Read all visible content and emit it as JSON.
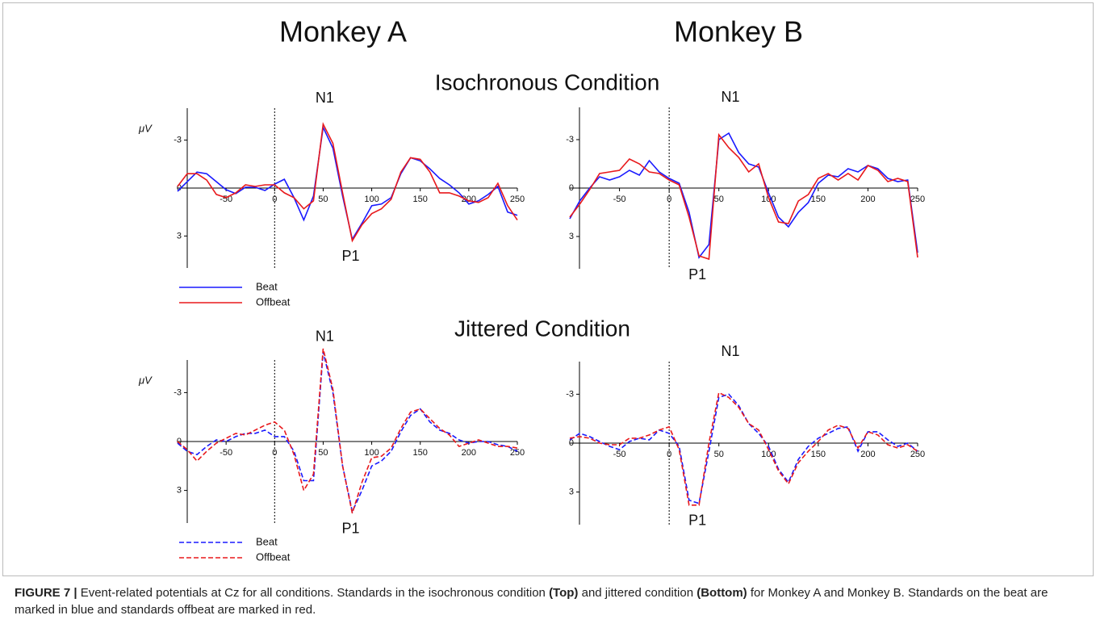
{
  "header": {
    "left": "Monkey A",
    "right": "Monkey B"
  },
  "conditions": [
    "Isochronous Condition",
    "Jittered Condition"
  ],
  "chart_data": [
    {
      "type": "line",
      "y_label": "μV",
      "annotations": [
        "N1",
        "P1"
      ],
      "line_style": "solid",
      "invert_y": true,
      "x": [
        -100,
        -90,
        -80,
        -70,
        -60,
        -50,
        -40,
        -30,
        -20,
        -10,
        0,
        10,
        20,
        30,
        40,
        50,
        60,
        70,
        80,
        90,
        100,
        110,
        120,
        130,
        140,
        150,
        160,
        170,
        180,
        190,
        200,
        210,
        220,
        230,
        240,
        250
      ],
      "xlim": [
        -100,
        250
      ],
      "xticks": [
        -50,
        0,
        50,
        100,
        150,
        200,
        250
      ],
      "ylim": [
        -5,
        5
      ],
      "yticks": [
        -3,
        0,
        3
      ],
      "series": [
        {
          "name": "Beat",
          "color": "#1a1aff",
          "values": [
            0.2,
            -0.4,
            -1.0,
            -0.9,
            -0.4,
            0.1,
            0.35,
            -0.05,
            -0.05,
            0.15,
            -0.25,
            -0.55,
            0.6,
            2.0,
            0.5,
            -3.8,
            -2.5,
            0.5,
            3.2,
            2.2,
            1.1,
            1.0,
            0.6,
            -0.9,
            -1.9,
            -1.7,
            -1.2,
            -0.6,
            -0.2,
            0.3,
            1.0,
            0.8,
            0.4,
            -0.1,
            1.5,
            1.7
          ]
        },
        {
          "name": "Offbeat",
          "color": "#e8191c",
          "values": [
            -0.1,
            -0.9,
            -0.9,
            -0.5,
            0.4,
            0.6,
            0.3,
            -0.2,
            -0.1,
            -0.2,
            -0.2,
            0.3,
            0.6,
            1.3,
            0.8,
            -4.0,
            -2.8,
            0.3,
            3.3,
            2.3,
            1.6,
            1.3,
            0.7,
            -1.0,
            -1.9,
            -1.8,
            -1.0,
            0.3,
            0.3,
            0.5,
            0.8,
            0.9,
            0.6,
            -0.3,
            1.1,
            2.0
          ]
        }
      ]
    },
    {
      "type": "line",
      "annotations": [
        "N1",
        "P1"
      ],
      "line_style": "solid",
      "invert_y": true,
      "x": [
        -100,
        -90,
        -80,
        -70,
        -60,
        -50,
        -40,
        -30,
        -20,
        -10,
        0,
        10,
        20,
        30,
        40,
        50,
        60,
        70,
        80,
        90,
        100,
        110,
        120,
        130,
        140,
        150,
        160,
        170,
        180,
        190,
        200,
        210,
        220,
        230,
        240,
        250
      ],
      "xlim": [
        -100,
        250
      ],
      "xticks": [
        -50,
        0,
        50,
        100,
        150,
        200,
        250
      ],
      "ylim": [
        -5,
        5
      ],
      "yticks": [
        -3,
        0,
        3
      ],
      "series": [
        {
          "color": "#1a1aff",
          "values": [
            1.9,
            0.8,
            0,
            -0.7,
            -0.5,
            -0.7,
            -1.1,
            -0.8,
            -1.7,
            -1.0,
            -0.6,
            -0.3,
            1.5,
            4.3,
            3.5,
            -3.0,
            -3.4,
            -2.2,
            -1.5,
            -1.3,
            0.3,
            1.8,
            2.4,
            1.5,
            0.9,
            -0.3,
            -0.8,
            -0.7,
            -1.2,
            -1.0,
            -1.4,
            -1.2,
            -0.6,
            -0.4,
            -0.5,
            4.0
          ]
        },
        {
          "color": "#e8191c",
          "values": [
            1.8,
            1.0,
            0.1,
            -0.9,
            -1.0,
            -1.1,
            -1.8,
            -1.5,
            -1.0,
            -0.9,
            -0.5,
            -0.2,
            1.8,
            4.2,
            4.4,
            -3.3,
            -2.5,
            -1.9,
            -1.0,
            -1.5,
            0.6,
            2.1,
            2.2,
            0.8,
            0.4,
            -0.6,
            -0.9,
            -0.5,
            -0.9,
            -0.5,
            -1.4,
            -1.1,
            -0.4,
            -0.6,
            -0.4,
            4.3
          ]
        }
      ]
    },
    {
      "type": "line",
      "y_label": "μV",
      "annotations": [
        "N1",
        "P1"
      ],
      "line_style": "dashed",
      "invert_y": true,
      "x": [
        -100,
        -90,
        -80,
        -70,
        -60,
        -50,
        -40,
        -30,
        -20,
        -10,
        0,
        10,
        20,
        30,
        40,
        50,
        60,
        70,
        80,
        90,
        100,
        110,
        120,
        130,
        140,
        150,
        160,
        170,
        180,
        190,
        200,
        210,
        220,
        230,
        240,
        250
      ],
      "xlim": [
        -100,
        250
      ],
      "xticks": [
        -50,
        0,
        50,
        100,
        150,
        200,
        250
      ],
      "ylim": [
        -5,
        5
      ],
      "yticks": [
        -3,
        0,
        3
      ],
      "series": [
        {
          "name": "Beat",
          "color": "#1a1aff",
          "values": [
            0.1,
            0.6,
            0.8,
            0.3,
            -0.1,
            0,
            -0.3,
            -0.5,
            -0.5,
            -0.7,
            -0.3,
            -0.3,
            0.6,
            2.4,
            2.4,
            -5.5,
            -3.0,
            1.5,
            4.3,
            3.0,
            1.5,
            1.2,
            0.6,
            -0.6,
            -1.6,
            -2.0,
            -1.2,
            -0.7,
            -0.5,
            -0.1,
            0.1,
            0,
            0,
            0.2,
            0.3,
            0.6
          ]
        },
        {
          "name": "Offbeat",
          "color": "#e8191c",
          "values": [
            0,
            0.5,
            1.2,
            0.6,
            0.1,
            -0.2,
            -0.5,
            -0.4,
            -0.7,
            -1.0,
            -1.2,
            -0.7,
            0.8,
            3.0,
            2.0,
            -5.7,
            -3.2,
            1.5,
            4.4,
            2.5,
            1.0,
            0.9,
            0.4,
            -0.8,
            -1.8,
            -2.0,
            -1.4,
            -0.8,
            -0.4,
            0.3,
            0.1,
            -0.1,
            0.1,
            0.3,
            0.3,
            0.4
          ]
        }
      ]
    },
    {
      "type": "line",
      "annotations": [
        "N1",
        "P1"
      ],
      "line_style": "dashed",
      "invert_y": true,
      "x": [
        -100,
        -90,
        -80,
        -70,
        -60,
        -50,
        -40,
        -30,
        -20,
        -10,
        0,
        10,
        20,
        30,
        40,
        50,
        60,
        70,
        80,
        90,
        100,
        110,
        120,
        130,
        140,
        150,
        160,
        170,
        180,
        190,
        200,
        210,
        220,
        230,
        240,
        250
      ],
      "xlim": [
        -100,
        250
      ],
      "xticks": [
        -50,
        0,
        50,
        100,
        150,
        200,
        250
      ],
      "ylim": [
        -5,
        5
      ],
      "yticks": [
        -3,
        0,
        3
      ],
      "series": [
        {
          "color": "#1a1aff",
          "values": [
            -0.2,
            -0.6,
            -0.4,
            -0.1,
            0.2,
            0.4,
            -0.1,
            -0.3,
            -0.2,
            -0.8,
            -0.6,
            0.2,
            3.5,
            3.7,
            0.5,
            -2.8,
            -3.0,
            -2.3,
            -1.2,
            -0.6,
            0.2,
            1.6,
            2.4,
            1.0,
            0.2,
            -0.3,
            -0.6,
            -0.9,
            -1.0,
            0.5,
            -0.7,
            -0.7,
            -0.2,
            0.2,
            0,
            0.5
          ]
        },
        {
          "color": "#e8191c",
          "values": [
            -0.3,
            -0.4,
            -0.3,
            0,
            0.1,
            0.1,
            -0.3,
            -0.3,
            -0.5,
            -0.8,
            -1.0,
            0.4,
            3.8,
            3.8,
            0,
            -3.1,
            -2.8,
            -2.2,
            -1.2,
            -0.8,
            0.4,
            1.7,
            2.5,
            1.2,
            0.5,
            -0.1,
            -0.8,
            -1.1,
            -0.9,
            0.3,
            -0.7,
            -0.5,
            0.1,
            0.3,
            0.1,
            0.5
          ]
        }
      ]
    }
  ],
  "caption": {
    "label": "FIGURE 7 |",
    "parts": [
      " Event-related potentials at Cz for all conditions. Standards in the isochronous condition ",
      "(Top)",
      " and jittered condition ",
      "(Bottom)",
      " for Monkey A and Monkey B. Standards on the beat are marked in blue and standards offbeat are marked in red."
    ]
  }
}
